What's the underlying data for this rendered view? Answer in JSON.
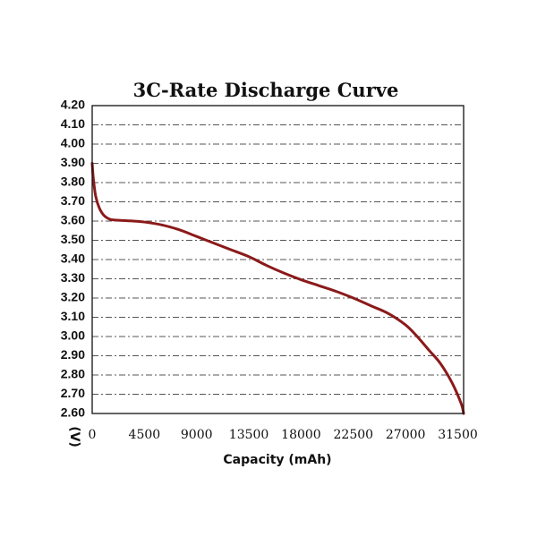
{
  "chart_data": {
    "type": "line",
    "title": "3C-Rate Discharge Curve",
    "xlabel": "Capacity (mAh)",
    "ylabel": "(V)",
    "xlim": [
      0,
      32000
    ],
    "ylim": [
      2.6,
      4.2
    ],
    "x_ticks": [
      "0",
      "4500",
      "9000",
      "13500",
      "18000",
      "22500",
      "27000",
      "31500"
    ],
    "x_tick_values": [
      0,
      4500,
      9000,
      13500,
      18000,
      22500,
      27000,
      31500
    ],
    "y_ticks": [
      "4.20",
      "4.10",
      "4.00",
      "3.90",
      "3.80",
      "3.70",
      "3.60",
      "3.50",
      "3.40",
      "3.30",
      "3.20",
      "3.10",
      "3.00",
      "2.90",
      "2.80",
      "2.70",
      "2.60"
    ],
    "y_tick_values": [
      4.2,
      4.1,
      4.0,
      3.9,
      3.8,
      3.7,
      3.6,
      3.5,
      3.4,
      3.3,
      3.2,
      3.1,
      3.0,
      2.9,
      2.8,
      2.7,
      2.6
    ],
    "grid": true,
    "series": [
      {
        "color": "#8b1a1a",
        "x": [
          0,
          100,
          300,
          600,
          1000,
          1500,
          2000,
          3000,
          4500,
          6000,
          7500,
          9000,
          10500,
          12000,
          13500,
          15000,
          16500,
          18000,
          19500,
          21000,
          22500,
          24000,
          25500,
          27000,
          28000,
          29000,
          30000,
          31000,
          31800,
          32000
        ],
        "y": [
          3.9,
          3.82,
          3.73,
          3.67,
          3.63,
          3.61,
          3.605,
          3.602,
          3.595,
          3.58,
          3.555,
          3.52,
          3.485,
          3.45,
          3.415,
          3.37,
          3.33,
          3.295,
          3.265,
          3.235,
          3.2,
          3.16,
          3.12,
          3.06,
          3.0,
          2.93,
          2.86,
          2.76,
          2.65,
          2.6
        ]
      }
    ]
  }
}
